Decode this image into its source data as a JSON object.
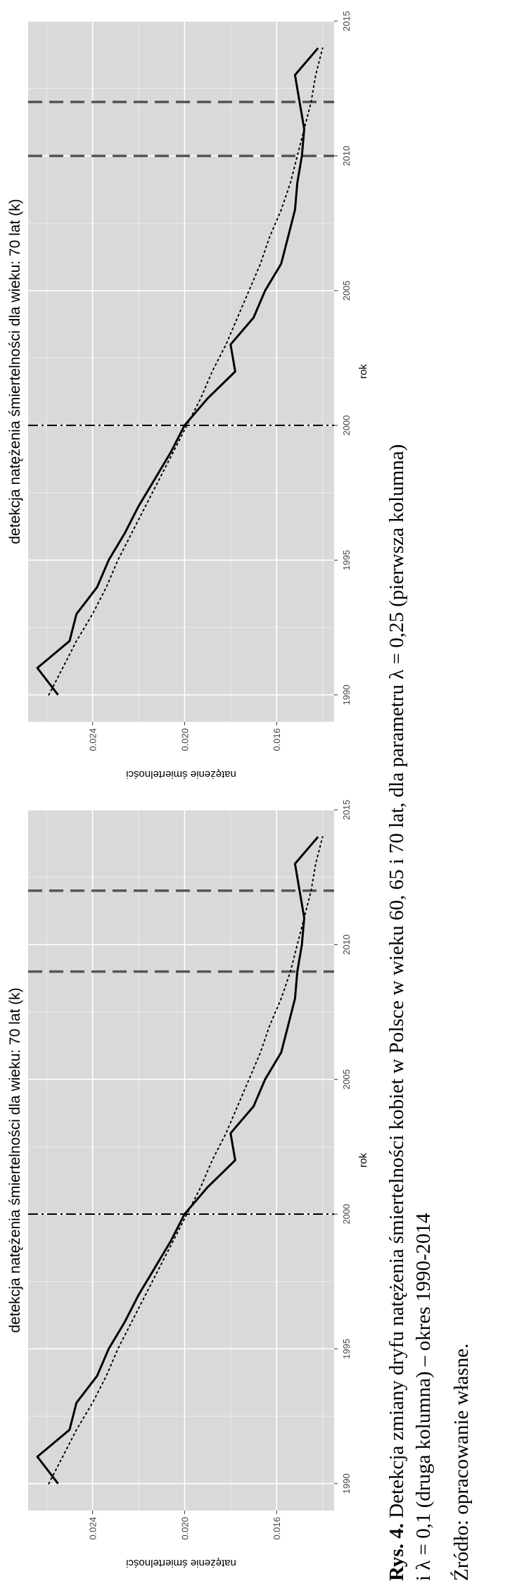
{
  "chart_data": [
    {
      "type": "line",
      "title": "detekcja natężenia śmiertelności dla wieku: 70 lat (k)",
      "xlabel": "rok",
      "ylabel": "natężenie śmiertelności",
      "xlim": [
        1989,
        2015
      ],
      "ylim": [
        0.0135,
        0.0268
      ],
      "x_ticks": [
        "1990",
        "1995",
        "2000",
        "2005",
        "2010",
        "2015"
      ],
      "y_ticks": [
        "0.016",
        "0.020",
        "0.024"
      ],
      "grid": true,
      "x": [
        1990,
        1991,
        1992,
        1993,
        1994,
        1995,
        1996,
        1997,
        1998,
        1999,
        2000,
        2001,
        2002,
        2003,
        2004,
        2005,
        2006,
        2007,
        2008,
        2009,
        2010,
        2011,
        2012,
        2013,
        2014
      ],
      "series": [
        {
          "style": "solid",
          "values": [
            0.0255,
            0.0264,
            0.025,
            0.0247,
            0.0238,
            0.0233,
            0.0226,
            0.022,
            0.0213,
            0.0206,
            0.02,
            0.019,
            0.0178,
            0.018,
            0.017,
            0.0165,
            0.0158,
            0.0155,
            0.0152,
            0.0151,
            0.0149,
            0.0148,
            0.015,
            0.0152,
            0.0142
          ]
        },
        {
          "style": "dotted",
          "values": [
            0.0259,
            0.0253,
            0.0247,
            0.024,
            0.0234,
            0.0229,
            0.0223,
            0.0217,
            0.0211,
            0.0205,
            0.0199,
            0.0193,
            0.0188,
            0.0182,
            0.0177,
            0.0172,
            0.0167,
            0.0163,
            0.0158,
            0.0154,
            0.0151,
            0.0148,
            0.0145,
            0.0143,
            0.014
          ]
        }
      ],
      "vlines": [
        {
          "x": 2000,
          "style": "dashdot"
        },
        {
          "x": 2009,
          "style": "dashed"
        },
        {
          "x": 2012,
          "style": "dashed"
        }
      ]
    },
    {
      "type": "line",
      "title": "detekcja natężenia śmiertelności dla wieku: 70 lat (k)",
      "xlabel": "rok",
      "ylabel": "natężenie śmiertelności",
      "xlim": [
        1989,
        2015
      ],
      "ylim": [
        0.0135,
        0.0268
      ],
      "x_ticks": [
        "1990",
        "1995",
        "2000",
        "2005",
        "2010",
        "2015"
      ],
      "y_ticks": [
        "0.016",
        "0.020",
        "0.024"
      ],
      "grid": true,
      "x": [
        1990,
        1991,
        1992,
        1993,
        1994,
        1995,
        1996,
        1997,
        1998,
        1999,
        2000,
        2001,
        2002,
        2003,
        2004,
        2005,
        2006,
        2007,
        2008,
        2009,
        2010,
        2011,
        2012,
        2013,
        2014
      ],
      "series": [
        {
          "style": "solid",
          "values": [
            0.0255,
            0.0264,
            0.025,
            0.0247,
            0.0238,
            0.0233,
            0.0226,
            0.022,
            0.0213,
            0.0206,
            0.02,
            0.019,
            0.0178,
            0.018,
            0.017,
            0.0165,
            0.0158,
            0.0155,
            0.0152,
            0.0151,
            0.0149,
            0.0148,
            0.015,
            0.0152,
            0.0142
          ]
        },
        {
          "style": "dotted",
          "values": [
            0.0259,
            0.0253,
            0.0247,
            0.024,
            0.0234,
            0.0229,
            0.0223,
            0.0217,
            0.0211,
            0.0205,
            0.0199,
            0.0193,
            0.0188,
            0.0182,
            0.0177,
            0.0172,
            0.0167,
            0.0163,
            0.0158,
            0.0154,
            0.0151,
            0.0148,
            0.0145,
            0.0143,
            0.014
          ]
        }
      ],
      "vlines": [
        {
          "x": 2000,
          "style": "dashdot"
        },
        {
          "x": 2010,
          "style": "dashed"
        },
        {
          "x": 2012,
          "style": "dashed"
        }
      ]
    }
  ],
  "colors": {
    "panel_background": "#d9d9d9",
    "grid": "#ffffff",
    "line": "#000000",
    "vline_dashed": "#555555"
  },
  "caption": {
    "prefix": "Rys. 4.",
    "line1": "Detekcja zmiany dryfu natężenia śmiertelności kobiet w Polsce w wieku 60, 65 i 70 lat, dla parametru λ = 0,25 (pierwsza kolumna)",
    "line2": "i λ = 0,1 (druga kolumna) – okres 1990-2014",
    "source": "Źródło: opracowanie własne."
  }
}
